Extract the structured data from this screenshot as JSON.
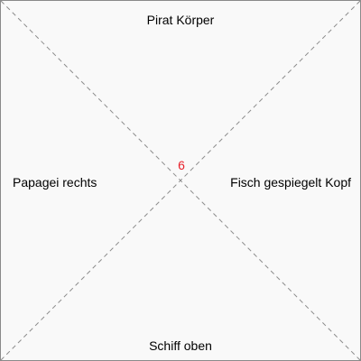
{
  "tile": {
    "top": "Pirat Körper",
    "bottom": "Schiff oben",
    "left": "Papagei rechts",
    "right": "Fisch gespiegelt Kopf",
    "number": "6"
  },
  "colors": {
    "number": "#e8202a",
    "diagonal": "#8c8c8c",
    "border": "#8a8a8a",
    "background": "#f9f9f9"
  }
}
